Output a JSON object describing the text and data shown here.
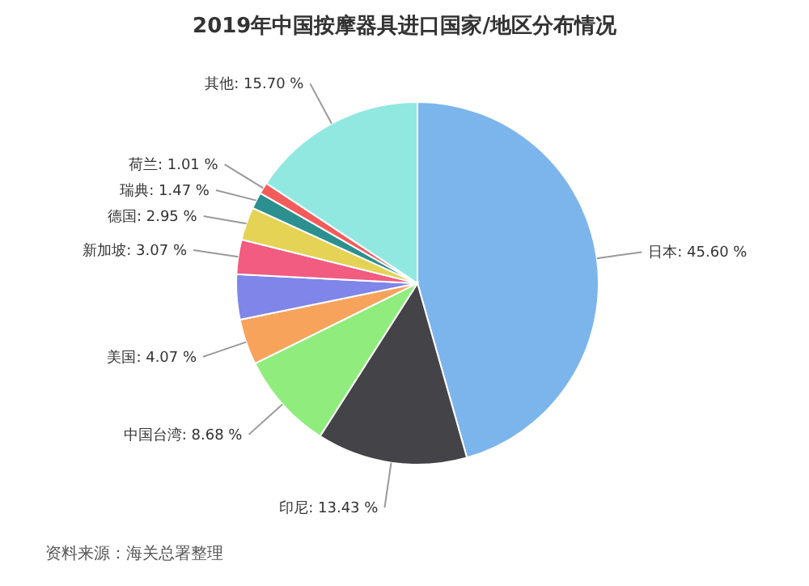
{
  "chart_data": {
    "type": "pie",
    "title": "2019年中国按摩器具进口国家/地区分布情况",
    "categories": [
      "日本",
      "印尼",
      "中国台湾",
      "美国",
      null,
      "新加坡",
      "德国",
      "瑞典",
      "荷兰",
      "其他"
    ],
    "values": [
      45.6,
      13.43,
      8.68,
      4.07,
      4.02,
      3.07,
      2.95,
      1.47,
      1.01,
      15.7
    ],
    "value_labels": [
      "45.60 %",
      "13.43 %",
      "8.68 %",
      "4.07 %",
      null,
      "3.07 %",
      "2.95 %",
      "1.47 %",
      "1.01 %",
      "15.70 %"
    ],
    "colors": [
      "#7cb5ec",
      "#434348",
      "#90ed7d",
      "#f7a35c",
      "#8085e9",
      "#f15c80",
      "#e4d354",
      "#2b908f",
      "#f45b5b",
      "#91e8e1"
    ],
    "annotations": [
      "资料来源：海关总署整理"
    ]
  }
}
